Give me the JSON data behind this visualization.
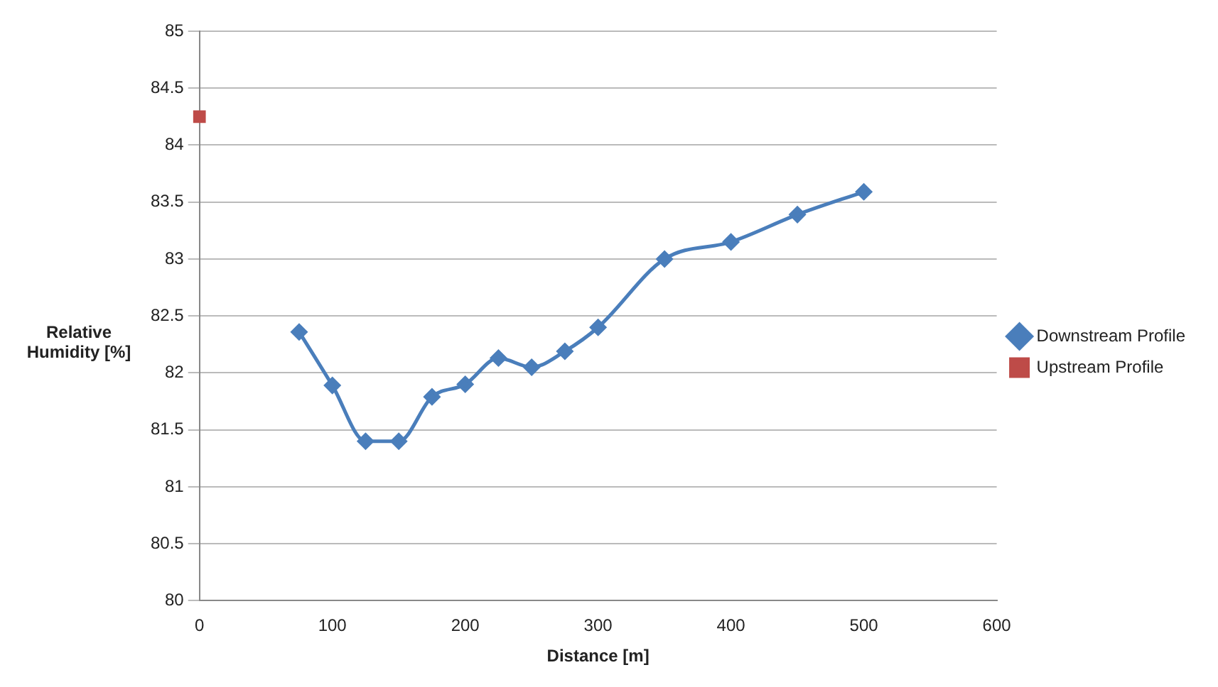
{
  "chart_data": {
    "type": "line",
    "xlabel": "Distance [m]",
    "ylabel": "Relative Humidity [%]",
    "xlim": [
      0,
      600
    ],
    "xticks": [
      0,
      100,
      200,
      300,
      400,
      500,
      600
    ],
    "ylim": [
      80,
      85
    ],
    "yticks": [
      80,
      80.5,
      81,
      81.5,
      82,
      82.5,
      83,
      83.5,
      84,
      84.5,
      85
    ],
    "grid": "y",
    "legend": "right",
    "series": [
      {
        "name": "Downstream Profile",
        "color": "#4a7ebb",
        "marker": "diamond",
        "x": [
          75,
          100,
          125,
          150,
          175,
          200,
          225,
          250,
          275,
          300,
          350,
          400,
          450,
          500
        ],
        "values": [
          82.36,
          81.89,
          81.4,
          81.4,
          81.79,
          81.9,
          82.13,
          82.05,
          82.19,
          82.4,
          83.0,
          83.15,
          83.39,
          83.59
        ]
      },
      {
        "name": "Upstream Profile",
        "color": "#be4b48",
        "marker": "square",
        "x": [
          0
        ],
        "values": [
          84.25
        ]
      }
    ]
  }
}
